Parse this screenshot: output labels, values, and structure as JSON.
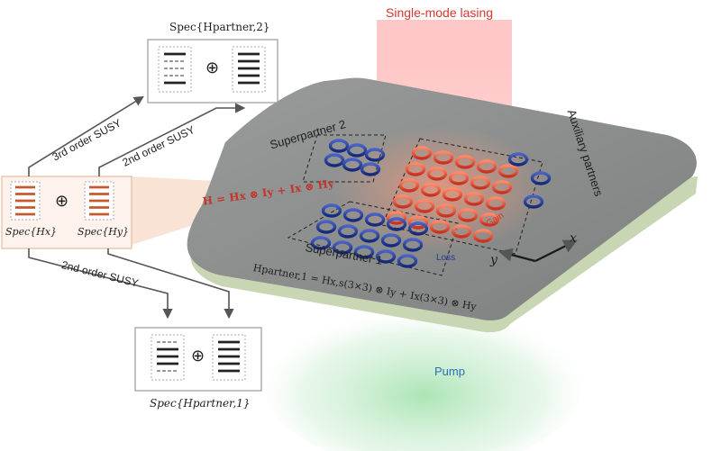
{
  "labels": {
    "lasing": "Single-mode lasing",
    "pump": "Pump",
    "auxiliary": "Auxiliary partners",
    "superpartner2": "Superpartner 2",
    "superpartner1": "Superpartner 1",
    "gain": "Gain",
    "loss": "Loss",
    "axis_x": "x",
    "axis_y": "y",
    "third_order": "3rd order SUSY",
    "second_order_top": "2nd order SUSY",
    "second_order_bottom": "2nd order SUSY",
    "oplus": "⊕"
  },
  "equations": {
    "hamiltonian": "H = Hx ⊗ Iy + Ix ⊗ Hy",
    "partner1": "Hpartner,1 = Hx,s(3×3) ⊗ Iy + Ix(3×3) ⊗ Hy"
  },
  "spectra": {
    "partner2": "Spec{Hpartner,2}",
    "partner1": "Spec{Hpartner,1}",
    "hx": "Spec{Hx}",
    "hy": "Spec{Hy}"
  },
  "colors": {
    "gain_ring": "#e8573f",
    "loss_ring": "#1f3a93",
    "plate": "#8a8d8c",
    "spectrum_orange": "#c65a2c",
    "lasing_glow": "#ff6a6a",
    "pump_glow": "#7cd38c"
  },
  "icons": [
    "ring-resonator-icon",
    "oplus-icon",
    "arrow-icon"
  ]
}
